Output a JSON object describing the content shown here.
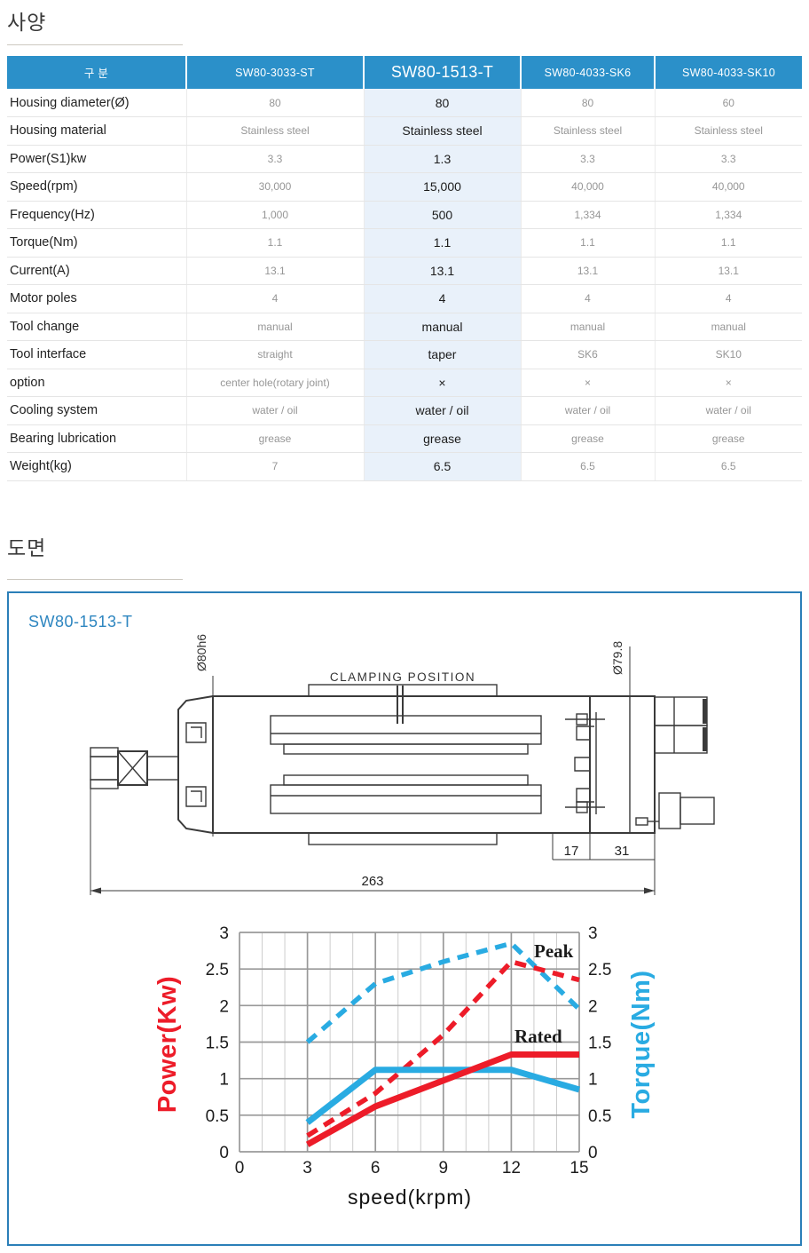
{
  "sections": {
    "spec_title": "사양",
    "drawing_title": "도면"
  },
  "colors": {
    "table_header_blue": "#2b90c9",
    "highlight_column_bg": "#e9f1fa",
    "panel_border_blue": "#2b7fb8",
    "model_label_blue": "#2e86c0",
    "power_red": "#ed1c29",
    "torque_blue": "#29abe2"
  },
  "spec_table": {
    "columns": [
      "구 분",
      "SW80-3033-ST",
      "SW80-1513-T",
      "SW80-4033-SK6",
      "SW80-4033-SK10"
    ],
    "highlighted_column": "SW80-1513-T",
    "rows": [
      {
        "label": "Housing diameter(Ø)",
        "values": [
          "80",
          "80",
          "80",
          "60"
        ]
      },
      {
        "label": "Housing material",
        "values": [
          "Stainless steel",
          "Stainless steel",
          "Stainless steel",
          "Stainless steel"
        ]
      },
      {
        "label": "Power(S1)kw",
        "values": [
          "3.3",
          "1.3",
          "3.3",
          "3.3"
        ]
      },
      {
        "label": "Speed(rpm)",
        "values": [
          "30,000",
          "15,000",
          "40,000",
          "40,000"
        ]
      },
      {
        "label": "Frequency(Hz)",
        "values": [
          "1,000",
          "500",
          "1,334",
          "1,334"
        ]
      },
      {
        "label": "Torque(Nm)",
        "values": [
          "1.1",
          "1.1",
          "1.1",
          "1.1"
        ]
      },
      {
        "label": "Current(A)",
        "values": [
          "13.1",
          "13.1",
          "13.1",
          "13.1"
        ]
      },
      {
        "label": "Motor poles",
        "values": [
          "4",
          "4",
          "4",
          "4"
        ]
      },
      {
        "label": "Tool change",
        "values": [
          "manual",
          "manual",
          "manual",
          "manual"
        ]
      },
      {
        "label": "Tool interface",
        "values": [
          "straight",
          "taper",
          "SK6",
          "SK10"
        ]
      },
      {
        "label": "option",
        "values": [
          "center hole(rotary joint)",
          "×",
          "×",
          "×"
        ]
      },
      {
        "label": "Cooling system",
        "values": [
          "water / oil",
          "water / oil",
          "water / oil",
          "water / oil"
        ]
      },
      {
        "label": "Bearing lubrication",
        "values": [
          "grease",
          "grease",
          "grease",
          "grease"
        ]
      },
      {
        "label": "Weight(kg)",
        "values": [
          "7",
          "6.5",
          "6.5",
          "6.5"
        ]
      }
    ]
  },
  "drawing": {
    "model": "SW80-1513-T",
    "labels": {
      "clamping": "CLAMPING POSITION",
      "dia_left": "Ø80h6",
      "dia_right": "Ø79.8",
      "dim_17": "17",
      "dim_31": "31",
      "dim_total": "263"
    }
  },
  "chart_data": {
    "type": "line",
    "title": "",
    "xlabel": "speed(krpm)",
    "ylabel_left": "Power(Kw)",
    "ylabel_right": "Torque(Nm)",
    "xlim": [
      0,
      15
    ],
    "ylim": [
      0,
      3
    ],
    "xticks": [
      0,
      3,
      6,
      9,
      12,
      15
    ],
    "yticks": [
      0,
      0.5,
      1,
      1.5,
      2,
      2.5,
      3
    ],
    "grid": "major-both-axes-plus-minor-x-every-1krpm",
    "legend_position": "none",
    "annotations": [
      "Peak",
      "Rated"
    ],
    "series": [
      {
        "name": "Peak Torque(Nm)",
        "style": "dashed",
        "color": "#29abe2",
        "x": [
          3,
          6,
          9,
          12,
          15
        ],
        "values": [
          1.5,
          2.3,
          2.6,
          2.85,
          1.95
        ]
      },
      {
        "name": "Peak Power(Kw)",
        "style": "dashed",
        "color": "#ed1c29",
        "x": [
          3,
          6,
          9,
          12,
          15
        ],
        "values": [
          0.22,
          0.8,
          1.6,
          2.6,
          2.35
        ]
      },
      {
        "name": "Rated Torque(Nm)",
        "style": "solid",
        "color": "#29abe2",
        "x": [
          3,
          6,
          12,
          15
        ],
        "values": [
          0.4,
          1.12,
          1.12,
          0.85
        ]
      },
      {
        "name": "Rated Power(Kw)",
        "style": "solid",
        "color": "#ed1c29",
        "x": [
          3,
          6,
          12,
          15
        ],
        "values": [
          0.1,
          0.62,
          1.33,
          1.33
        ]
      }
    ]
  }
}
